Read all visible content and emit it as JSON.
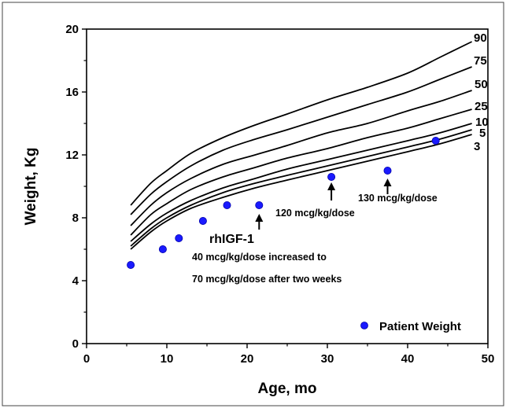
{
  "chart_data": {
    "type": "line",
    "title": "",
    "xlabel": "Age, mo",
    "ylabel": "Weight, Kg",
    "xlim": [
      0,
      50
    ],
    "ylim": [
      0,
      20
    ],
    "xticks": [
      0,
      10,
      20,
      30,
      40,
      50
    ],
    "yticks": [
      0,
      4,
      8,
      12,
      16,
      20
    ],
    "xticklabels": [
      "0",
      "10",
      "20",
      "30",
      "40",
      "50"
    ],
    "yticklabels": [
      "0",
      "4",
      "8",
      "12",
      "16",
      "20"
    ],
    "grid": false,
    "legend": {
      "position": "bottom-right",
      "label": "Patient Weight"
    },
    "percentiles": [
      {
        "name": "90",
        "x": [
          5.5,
          8,
          10,
          13,
          17,
          21,
          25,
          30,
          35,
          40,
          44,
          48
        ],
        "y": [
          8.8,
          10.2,
          11.0,
          12.1,
          13.1,
          13.9,
          14.6,
          15.5,
          16.3,
          17.2,
          18.2,
          19.2
        ]
      },
      {
        "name": "75",
        "x": [
          5.5,
          8,
          10,
          13,
          17,
          21,
          25,
          30,
          35,
          40,
          44,
          48
        ],
        "y": [
          8.2,
          9.5,
          10.3,
          11.3,
          12.3,
          13.0,
          13.6,
          14.4,
          15.2,
          16.0,
          16.8,
          17.6
        ]
      },
      {
        "name": "50",
        "x": [
          5.5,
          8,
          10,
          13,
          17,
          21,
          25,
          30,
          35,
          40,
          44,
          48
        ],
        "y": [
          7.5,
          8.8,
          9.6,
          10.5,
          11.4,
          12.0,
          12.6,
          13.4,
          14.0,
          14.8,
          15.4,
          16.1
        ]
      },
      {
        "name": "25",
        "x": [
          5.5,
          8,
          10,
          13,
          17,
          21,
          25,
          30,
          35,
          40,
          44,
          48
        ],
        "y": [
          6.9,
          8.2,
          8.9,
          9.8,
          10.6,
          11.2,
          11.8,
          12.4,
          13.1,
          13.7,
          14.3,
          14.9
        ]
      },
      {
        "name": "10",
        "x": [
          5.5,
          8,
          10,
          13,
          17,
          21,
          25,
          30,
          35,
          40,
          44,
          48
        ],
        "y": [
          6.5,
          7.6,
          8.3,
          9.1,
          9.9,
          10.5,
          11.1,
          11.7,
          12.3,
          12.9,
          13.4,
          14.0
        ]
      },
      {
        "name": "5",
        "x": [
          5.5,
          8,
          10,
          13,
          17,
          21,
          25,
          30,
          35,
          40,
          44,
          48
        ],
        "y": [
          6.2,
          7.3,
          8.0,
          8.8,
          9.6,
          10.2,
          10.7,
          11.3,
          11.9,
          12.5,
          13.0,
          13.6
        ]
      },
      {
        "name": "3",
        "x": [
          5.5,
          8,
          10,
          13,
          17,
          21,
          25,
          30,
          35,
          40,
          44,
          48
        ],
        "y": [
          6.0,
          7.1,
          7.8,
          8.6,
          9.3,
          9.9,
          10.4,
          11.0,
          11.6,
          12.2,
          12.7,
          13.3
        ]
      }
    ],
    "patient_weight": {
      "name": "Patient Weight",
      "color": "#1a1aff",
      "x": [
        5.5,
        9.5,
        11.5,
        14.5,
        17.5,
        21.5,
        30.5,
        37.5,
        43.5
      ],
      "y": [
        5.0,
        6.0,
        6.7,
        7.8,
        8.8,
        8.8,
        10.6,
        11.0,
        12.9
      ]
    },
    "annotations": [
      {
        "id": "rhigf1",
        "lines": [
          "rhIGF-1",
          "40 mcg/kg/dose  increased to",
          "70 mcg/kg/dose after two weeks"
        ],
        "arrow_x": 21.5
      },
      {
        "id": "dose120",
        "lines": [
          "120 mcg/kg/dose"
        ],
        "arrow_x": 30.5
      },
      {
        "id": "dose130",
        "lines": [
          "130 mcg/kg/dose"
        ],
        "arrow_x": 37.5
      }
    ]
  }
}
